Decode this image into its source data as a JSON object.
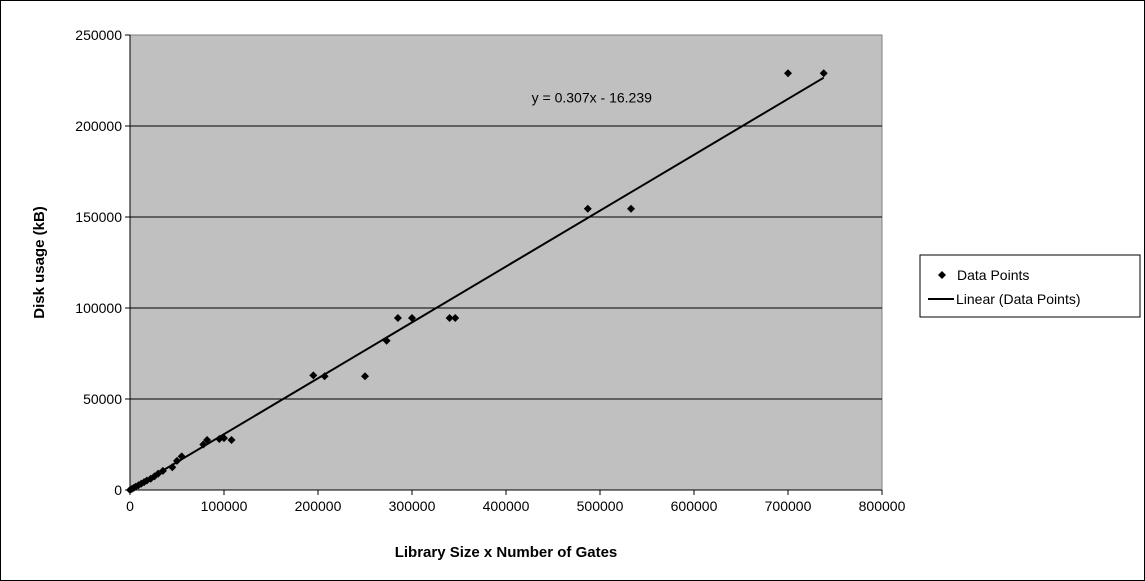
{
  "chart_data": {
    "type": "scatter",
    "xlabel": "Library Size x Number of Gates",
    "ylabel": "Disk usage (kB)",
    "xlim": [
      0,
      800000
    ],
    "ylim": [
      0,
      250000
    ],
    "x_ticks": [
      0,
      100000,
      200000,
      300000,
      400000,
      500000,
      600000,
      700000,
      800000
    ],
    "y_ticks": [
      0,
      50000,
      100000,
      150000,
      200000,
      250000
    ],
    "grid": "horizontal",
    "plot_background": "#c0c0c0",
    "legend_position": "right",
    "series": [
      {
        "name": "Data Points",
        "marker": "diamond",
        "color": "#000000",
        "points": [
          [
            0,
            0
          ],
          [
            2000,
            600
          ],
          [
            4000,
            1200
          ],
          [
            6000,
            1800
          ],
          [
            9000,
            2600
          ],
          [
            12000,
            3500
          ],
          [
            15000,
            4300
          ],
          [
            18000,
            5200
          ],
          [
            22000,
            6200
          ],
          [
            26000,
            7500
          ],
          [
            30000,
            9000
          ],
          [
            35000,
            10500
          ],
          [
            45000,
            12500
          ],
          [
            50000,
            16000
          ],
          [
            55000,
            18500
          ],
          [
            78000,
            25000
          ],
          [
            82000,
            27500
          ],
          [
            95000,
            28000
          ],
          [
            100000,
            28500
          ],
          [
            108000,
            27500
          ],
          [
            195000,
            63000
          ],
          [
            207000,
            62500
          ],
          [
            250000,
            62500
          ],
          [
            273000,
            82000
          ],
          [
            285000,
            94500
          ],
          [
            300000,
            94500
          ],
          [
            340000,
            94500
          ],
          [
            346000,
            94500
          ],
          [
            487000,
            154500
          ],
          [
            533000,
            154500
          ],
          [
            700000,
            229000
          ],
          [
            738000,
            229000
          ]
        ]
      },
      {
        "name": "Linear (Data Points)",
        "type": "line",
        "color": "#000000",
        "slope": 0.307,
        "intercept": -16.239,
        "x_range": [
          0,
          738000
        ]
      }
    ],
    "annotations": [
      {
        "text": "y = 0.307x - 16.239",
        "x": 487000,
        "y": 213000
      }
    ]
  }
}
